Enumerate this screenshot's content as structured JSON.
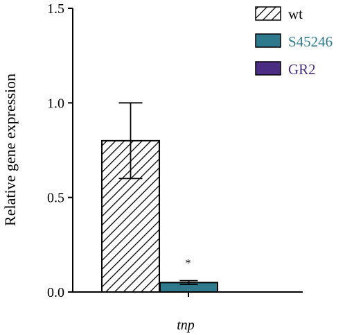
{
  "chart_data": {
    "type": "bar",
    "categories": [
      "tnp"
    ],
    "series": [
      {
        "name": "wt",
        "values": [
          0.8
        ],
        "error": [
          0.2
        ],
        "color": "#ffffff",
        "pattern": "diagonal-hatch"
      },
      {
        "name": "S45246",
        "values": [
          0.05
        ],
        "error": [
          0.01
        ],
        "color": "#2e7a8c",
        "annotation": "*"
      },
      {
        "name": "GR2",
        "values": [
          null
        ],
        "error": [
          null
        ],
        "color": "#4b2e83"
      }
    ],
    "ylabel": "Relative gene expression",
    "ylim": [
      0,
      1.5
    ],
    "yticks": [
      "0.0",
      "0.5",
      "1.0",
      "1.5"
    ],
    "legend_position": "top-right",
    "legend_text_colors": {
      "wt": "#000000",
      "S45246": "#2e7a8c",
      "GR2": "#4b2e83"
    }
  }
}
